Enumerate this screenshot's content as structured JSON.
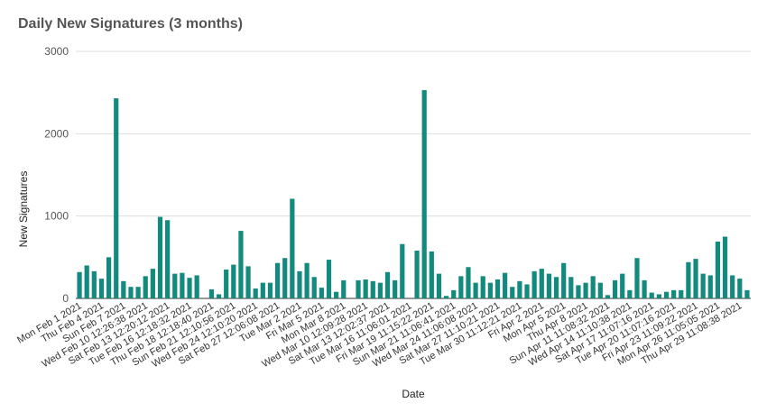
{
  "chart_data": {
    "type": "bar",
    "title": "Daily New Signatures (3 months)",
    "x_label": "Date",
    "y_label": "New Signatures",
    "color": "#138a7e",
    "grid": true,
    "ylim": [
      0,
      3000
    ],
    "yticks": [
      0,
      1000,
      2000,
      3000
    ],
    "categories": [
      "Mon Feb 1 2021",
      null,
      null,
      "Thu Feb 4 2021",
      null,
      null,
      "Sun Feb 7 2021",
      null,
      null,
      "Wed Feb 10 12:26:38 2021",
      null,
      null,
      "Sat Feb 13 12:20:12 2021",
      null,
      null,
      "Tue Feb 16 12:18:32 2021",
      null,
      null,
      "Thu Feb 18 12:18:40 2021",
      null,
      null,
      "Sun Feb 21 12:10:56 2021",
      null,
      null,
      "Wed Feb 24 12:10:20 2021",
      null,
      null,
      "Sat Feb 27 12:06:08 2021",
      null,
      null,
      "Tue Mar 2 2021",
      null,
      null,
      "Fri Mar 5 2021",
      null,
      null,
      "Mon Mar 8 2021",
      null,
      null,
      "Wed Mar 10 12:09:28 2021",
      null,
      null,
      "Sat Mar 13 12:02:37 2021",
      null,
      null,
      "Tue Mar 16 11:06:01 2021",
      null,
      null,
      "Fri Mar 19 11:15:22 2021",
      null,
      null,
      "Sun Mar 21 11:06:41 2021",
      null,
      null,
      "Wed Mar 24 11:06:08 2021",
      null,
      null,
      "Sat Mar 27 11:10:21 2021",
      null,
      null,
      "Tue Mar 30 11:12:21 2021",
      null,
      null,
      "Fri Apr 2 2021",
      null,
      null,
      "Mon Apr 5 2021",
      null,
      null,
      "Thu Apr 8 2021",
      null,
      null,
      "Sun Apr 11 11:08:32 2021",
      null,
      null,
      "Wed Apr 14 11:10:38 2021",
      null,
      null,
      "Sat Apr 17 11:07:16 2021",
      null,
      null,
      "Tue Apr 20 11:07:16 2021",
      null,
      null,
      "Fri Apr 23 11:09:22 2021",
      null,
      null,
      "Mon Apr 26 11:05:05 2021",
      null,
      null,
      "Thu Apr 29 11:08:38 2021",
      null
    ],
    "values": [
      320,
      400,
      330,
      240,
      500,
      2430,
      210,
      140,
      140,
      270,
      360,
      990,
      950,
      300,
      310,
      250,
      280,
      0,
      110,
      50,
      350,
      410,
      820,
      390,
      120,
      190,
      190,
      430,
      490,
      1210,
      330,
      430,
      260,
      130,
      470,
      80,
      220,
      0,
      220,
      230,
      210,
      190,
      320,
      220,
      660,
      0,
      580,
      2530,
      570,
      300,
      30,
      100,
      270,
      380,
      190,
      270,
      190,
      230,
      310,
      140,
      210,
      170,
      330,
      360,
      300,
      260,
      430,
      260,
      160,
      190,
      270,
      190,
      40,
      220,
      300,
      100,
      490,
      220,
      70,
      50,
      80,
      100,
      100,
      440,
      480,
      300,
      280,
      690,
      750,
      280,
      240,
      100
    ]
  }
}
